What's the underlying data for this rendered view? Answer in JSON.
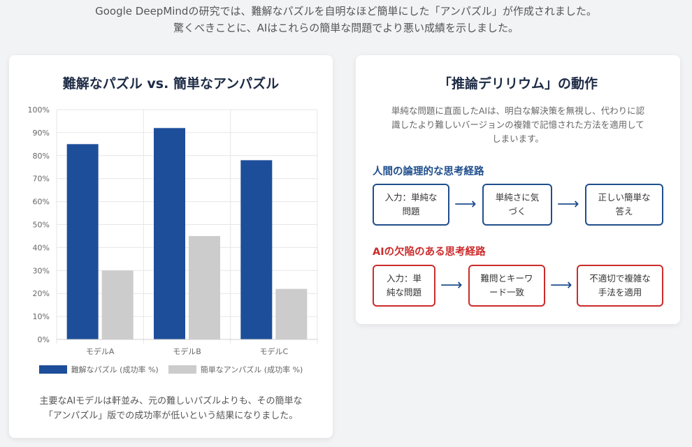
{
  "intro": {
    "line1": "Google DeepMindの研究では、難解なパズルを自明なほど簡単にした「アンパズル」が作成されました。",
    "line2": "驚くべきことに、AIはこれらの簡単な問題でより悪い成績を示しました。"
  },
  "left_card": {
    "title": "難解なパズル vs. 簡単なアンパズル",
    "caption_line1": "主要なAIモデルは軒並み、元の難しいパズルよりも、その簡単な",
    "caption_line2": "「アンパズル」版での成功率が低いという結果になりました。"
  },
  "chart_data": {
    "type": "bar",
    "categories": [
      "モデルA",
      "モデルB",
      "モデルC"
    ],
    "series": [
      {
        "name": "難解なパズル (成功率 %)",
        "values": [
          85,
          92,
          78
        ],
        "color": "#1d4e9a"
      },
      {
        "name": "簡単なアンパズル (成功率 %)",
        "values": [
          30,
          45,
          22
        ],
        "color": "#cccccc"
      }
    ],
    "ylim": [
      0,
      100
    ],
    "yticks": [
      "0%",
      "10%",
      "20%",
      "30%",
      "40%",
      "50%",
      "60%",
      "70%",
      "80%",
      "90%",
      "100%"
    ],
    "grid": true,
    "legend": "bottom"
  },
  "right_card": {
    "title": "「推論デリリウム」の動作",
    "desc_line1": "単純な問題に直面したAIは、明白な解決策を無視し、代わりに認",
    "desc_line2": "識したより難しいバージョンの複雑で記憶された方法を適用して",
    "desc_line3": "しまいます。",
    "human_title": "人間の論理的な思考経路",
    "human_steps": [
      {
        "l1": "入力：単純な",
        "l2": "問題"
      },
      {
        "l1": "単純さに気",
        "l2": "づく"
      },
      {
        "l1": "正しい簡単な",
        "l2": "答え"
      }
    ],
    "ai_title": "AIの欠陥のある思考経路",
    "ai_steps": [
      {
        "l1": "入力：単",
        "l2": "純な問題"
      },
      {
        "l1": "難問とキーワ",
        "l2": "ード一致"
      },
      {
        "l1": "不適切で複雑な",
        "l2": "手法を適用"
      }
    ],
    "arrow": "⟶",
    "colors": {
      "human": "#1f4e8c",
      "ai": "#cc2b2b"
    }
  }
}
